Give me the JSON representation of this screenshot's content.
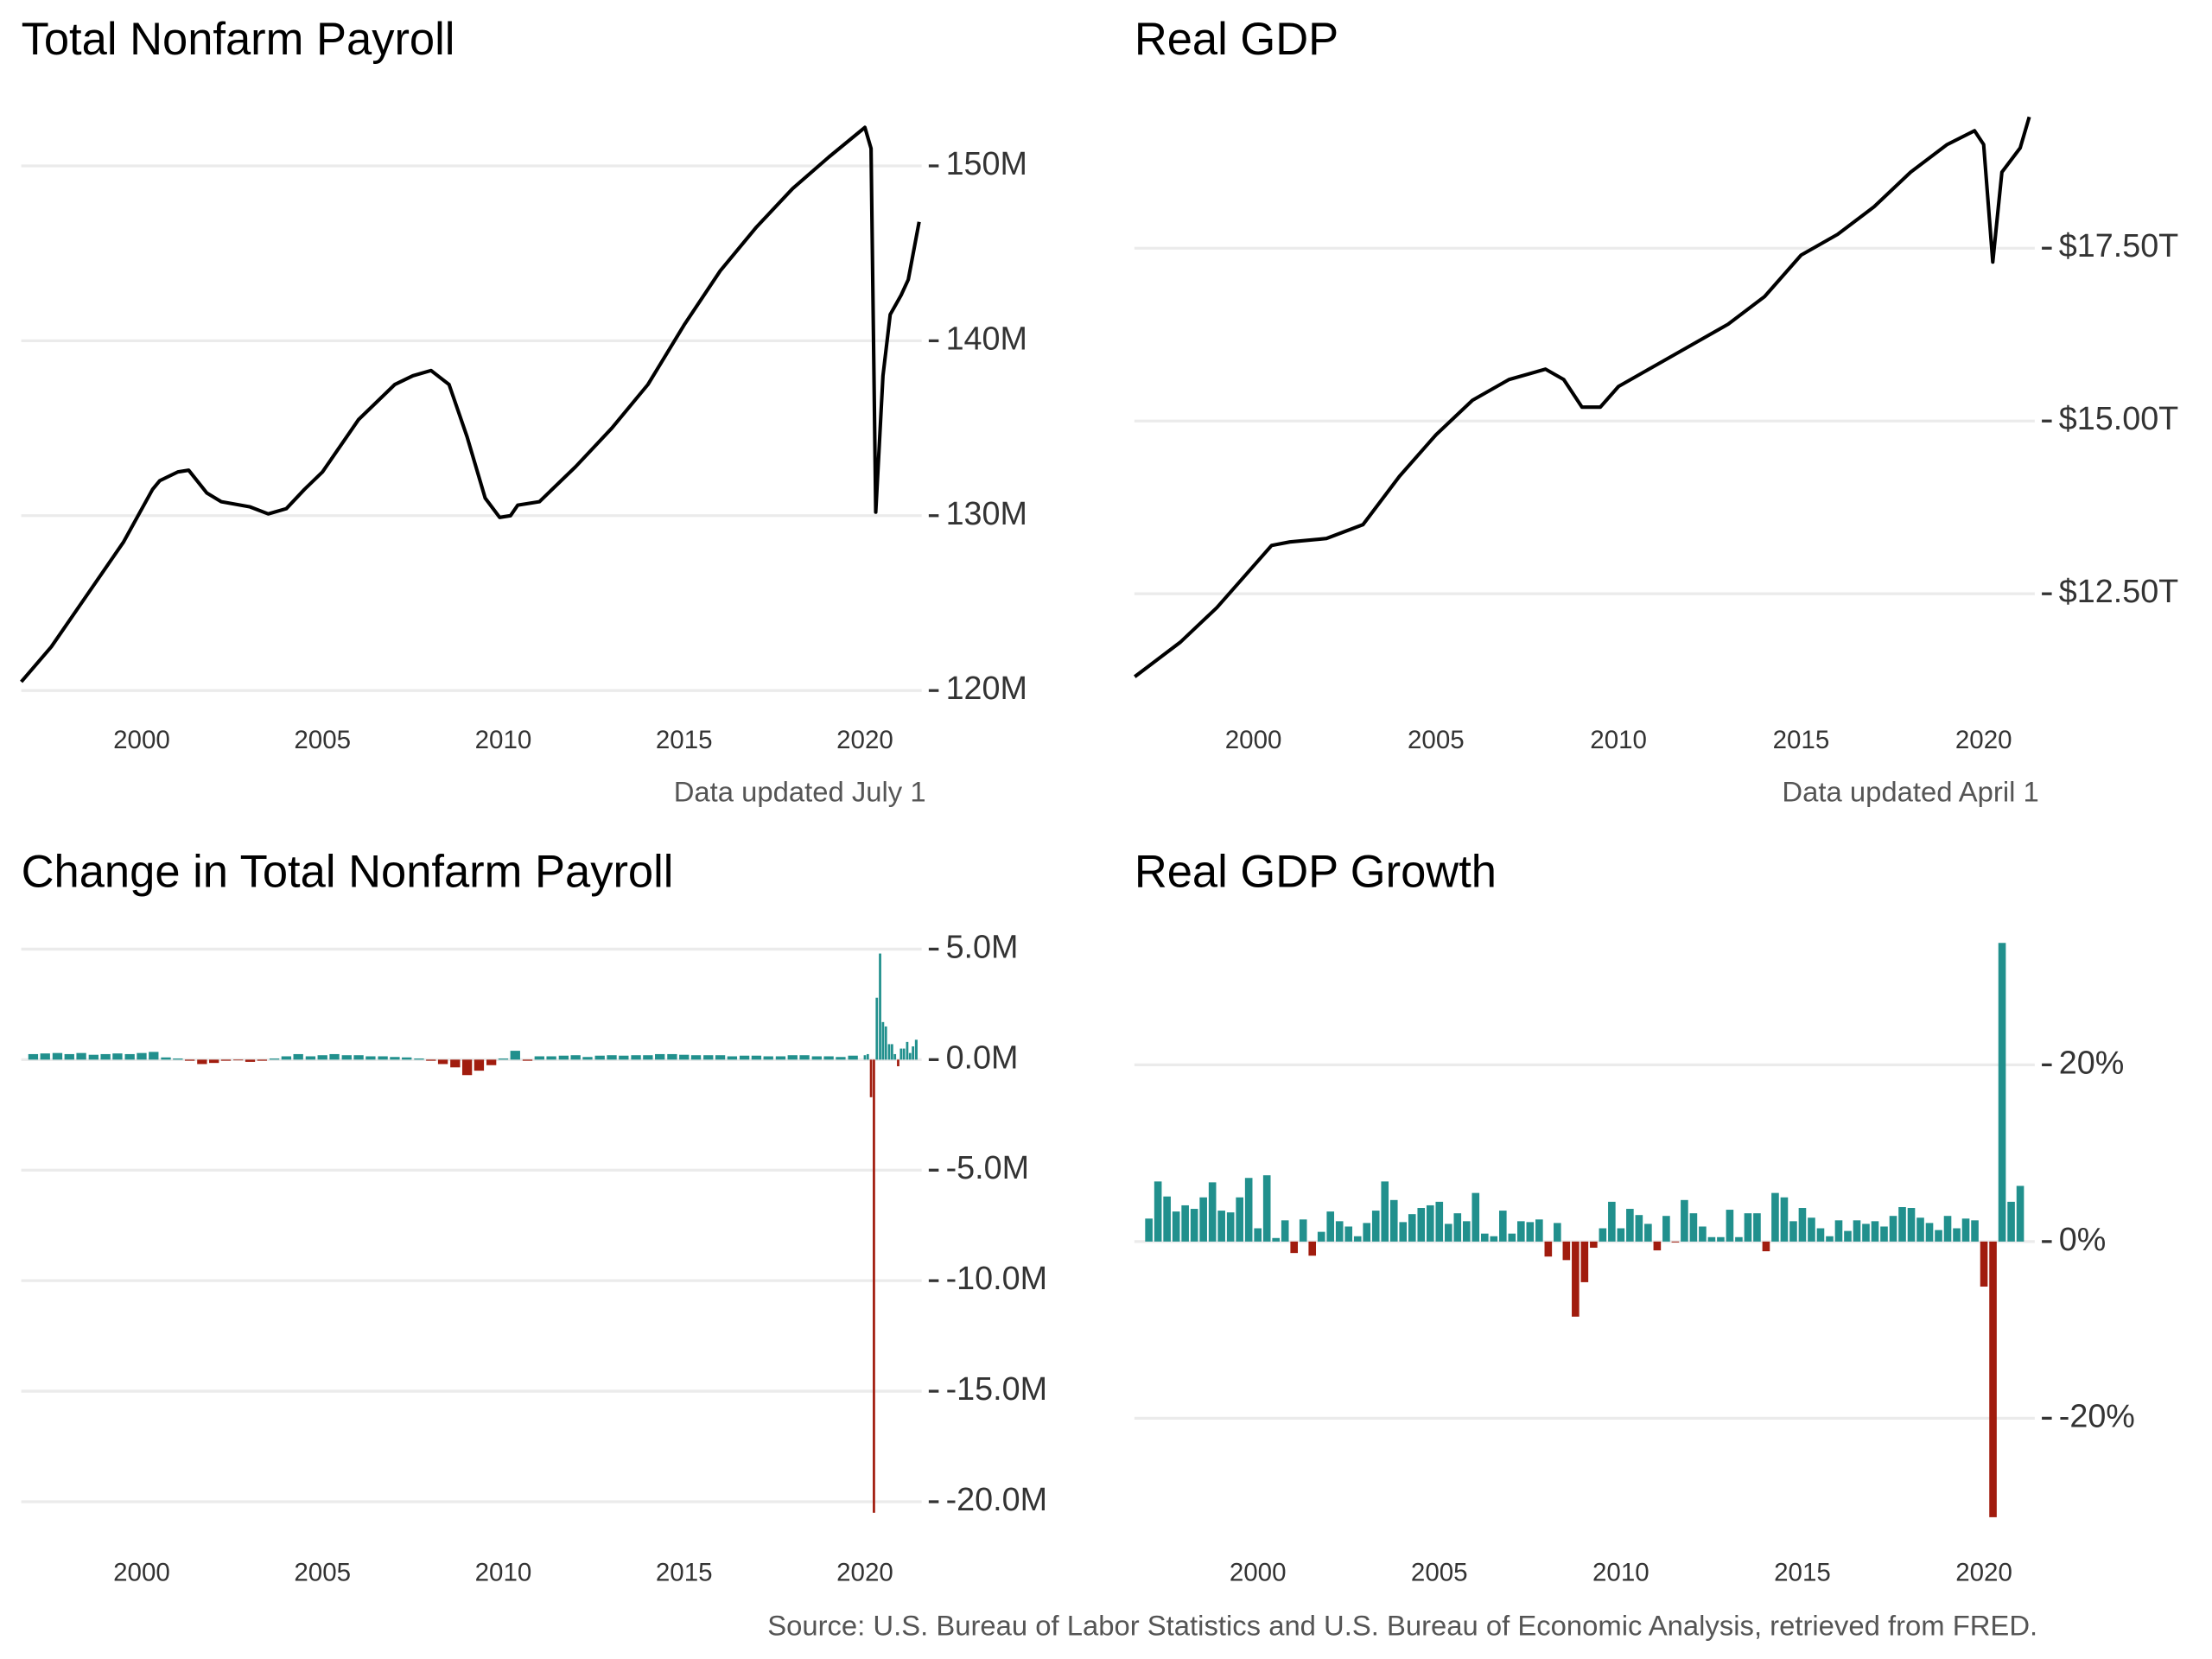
{
  "caption": "Source: U.S. Bureau of Labor Statistics and U.S. Bureau of Economic Analysis, retrieved from FRED.",
  "chart_data": [
    {
      "type": "line",
      "title": "Total Nonfarm Payroll",
      "note": "Data updated July 1",
      "color": "#000000",
      "grid": true,
      "x": [
        1996.67,
        1997.5,
        1998.5,
        1999.5,
        2000.3,
        2000.5,
        2001.0,
        2001.3,
        2001.8,
        2002.2,
        2003.0,
        2003.5,
        2004.0,
        2004.5,
        2005.0,
        2006.0,
        2007.0,
        2007.5,
        2008.0,
        2008.5,
        2009.0,
        2009.5,
        2009.9,
        2010.2,
        2010.4,
        2011.0,
        2012.0,
        2013.0,
        2014.0,
        2015.0,
        2016.0,
        2017.0,
        2018.0,
        2019.0,
        2020.0,
        2020.17,
        2020.3,
        2020.5,
        2020.7,
        2021.0,
        2021.2,
        2021.5
      ],
      "values": [
        120.5,
        122.5,
        125.5,
        128.5,
        131.5,
        132.0,
        132.5,
        132.6,
        131.3,
        130.8,
        130.5,
        130.1,
        130.4,
        131.5,
        132.5,
        135.5,
        137.5,
        138.0,
        138.3,
        137.5,
        134.5,
        131.0,
        129.9,
        130.0,
        130.6,
        130.8,
        132.8,
        135.0,
        137.5,
        140.9,
        144.0,
        146.5,
        148.7,
        150.5,
        152.2,
        151.0,
        130.2,
        138.0,
        141.5,
        142.6,
        143.5,
        146.8
      ],
      "xlim": [
        1996.67,
        2021.57
      ],
      "xticks": [
        2000,
        2005,
        2010,
        2015,
        2020
      ],
      "ylim": [
        120,
        153
      ],
      "yticks": [
        {
          "value": 120,
          "label": "120M"
        },
        {
          "value": 130,
          "label": "130M"
        },
        {
          "value": 140,
          "label": "140M"
        },
        {
          "value": 150,
          "label": "150M"
        }
      ]
    },
    {
      "type": "line",
      "title": "Real GDP",
      "note": "Data updated April 1",
      "color": "#000000",
      "grid": true,
      "x": [
        1996.75,
        1998,
        1999,
        2000,
        2000.5,
        2001,
        2002,
        2003,
        2004,
        2005,
        2006,
        2007,
        2008,
        2008.5,
        2009,
        2009.5,
        2010,
        2011,
        2012,
        2013,
        2014,
        2015,
        2016,
        2017,
        2018,
        2019,
        2019.75,
        2020.0,
        2020.25,
        2020.5,
        2021.0,
        2021.25
      ],
      "values": [
        11.3,
        11.8,
        12.3,
        12.9,
        13.2,
        13.25,
        13.3,
        13.5,
        14.2,
        14.8,
        15.3,
        15.6,
        15.75,
        15.6,
        15.2,
        15.2,
        15.5,
        15.8,
        16.1,
        16.4,
        16.8,
        17.4,
        17.7,
        18.1,
        18.6,
        19.0,
        19.2,
        19.0,
        17.3,
        18.6,
        18.95,
        19.4
      ],
      "xlim": [
        1996.74,
        2021.4
      ],
      "xticks": [
        2000,
        2005,
        2010,
        2015,
        2020
      ],
      "ylim": [
        11.1,
        19.45
      ],
      "yticks": [
        {
          "value": 12.5,
          "label": "$12.50T"
        },
        {
          "value": 15,
          "label": "$15.00T"
        },
        {
          "value": 17.5,
          "label": "$17.50T"
        }
      ]
    },
    {
      "type": "bar",
      "title": "Change in Total Nonfarm Payroll",
      "positive_color": "#21908d",
      "negative_color": "#a11c0e",
      "grid": true,
      "x": [
        1997.0,
        1997.33,
        1997.67,
        1998.0,
        1998.33,
        1998.67,
        1999.0,
        1999.33,
        1999.67,
        2000.0,
        2000.33,
        2000.67,
        2001.0,
        2001.33,
        2001.67,
        2002.0,
        2002.33,
        2002.67,
        2003.0,
        2003.33,
        2003.67,
        2004.0,
        2004.33,
        2004.67,
        2005.0,
        2005.33,
        2005.67,
        2006.0,
        2006.33,
        2006.67,
        2007.0,
        2007.33,
        2007.67,
        2008.0,
        2008.33,
        2008.67,
        2009.0,
        2009.33,
        2009.67,
        2010.0,
        2010.33,
        2010.67,
        2011.0,
        2011.33,
        2011.67,
        2012.0,
        2012.33,
        2012.67,
        2013.0,
        2013.33,
        2013.67,
        2014.0,
        2014.33,
        2014.67,
        2015.0,
        2015.33,
        2015.67,
        2016.0,
        2016.33,
        2016.67,
        2017.0,
        2017.33,
        2017.67,
        2018.0,
        2018.33,
        2018.67,
        2019.0,
        2019.33,
        2019.67,
        2020.0,
        2020.08,
        2020.17,
        2020.25,
        2020.33,
        2020.42,
        2020.5,
        2020.58,
        2020.67,
        2020.75,
        2020.83,
        2020.92,
        2021.0,
        2021.08,
        2021.17,
        2021.25,
        2021.33,
        2021.42
      ],
      "values": [
        0.25,
        0.28,
        0.3,
        0.25,
        0.3,
        0.22,
        0.25,
        0.28,
        0.25,
        0.3,
        0.35,
        0.1,
        0.05,
        -0.05,
        -0.2,
        -0.15,
        -0.05,
        -0.02,
        -0.1,
        -0.05,
        0.05,
        0.15,
        0.25,
        0.15,
        0.2,
        0.25,
        0.2,
        0.2,
        0.15,
        0.15,
        0.12,
        0.1,
        0.05,
        -0.05,
        -0.2,
        -0.35,
        -0.7,
        -0.5,
        -0.25,
        0.05,
        0.4,
        -0.05,
        0.15,
        0.15,
        0.18,
        0.2,
        0.12,
        0.18,
        0.2,
        0.18,
        0.2,
        0.2,
        0.25,
        0.25,
        0.22,
        0.2,
        0.2,
        0.2,
        0.15,
        0.18,
        0.18,
        0.15,
        0.15,
        0.2,
        0.2,
        0.15,
        0.15,
        0.12,
        0.18,
        0.2,
        0.25,
        -1.7,
        -20.5,
        2.8,
        4.8,
        1.7,
        1.5,
        0.7,
        0.7,
        0.25,
        -0.3,
        0.5,
        0.5,
        0.8,
        0.3,
        0.6,
        0.9
      ],
      "xlim": [
        1996.67,
        2021.57
      ],
      "xticks": [
        2000,
        2005,
        2010,
        2015,
        2020
      ],
      "ylim": [
        -20.7,
        5.6
      ],
      "yticks": [
        {
          "value": -20,
          "label": "-20.0M"
        },
        {
          "value": -15,
          "label": "-15.0M"
        },
        {
          "value": -10,
          "label": "-10.0M"
        },
        {
          "value": -5,
          "label": "-5.0M"
        },
        {
          "value": 0,
          "label": "0.0M"
        },
        {
          "value": 5,
          "label": "5.0M"
        }
      ]
    },
    {
      "type": "bar",
      "title": "Real GDP Growth",
      "positive_color": "#21908d",
      "negative_color": "#a11c0e",
      "grid": true,
      "x": [
        1997,
        1997.25,
        1997.5,
        1997.75,
        1998,
        1998.25,
        1998.5,
        1998.75,
        1999,
        1999.25,
        1999.5,
        1999.75,
        2000,
        2000.25,
        2000.5,
        2000.75,
        2001,
        2001.25,
        2001.5,
        2001.75,
        2002,
        2002.25,
        2002.5,
        2002.75,
        2003,
        2003.25,
        2003.5,
        2003.75,
        2004,
        2004.25,
        2004.5,
        2004.75,
        2005,
        2005.25,
        2005.5,
        2005.75,
        2006,
        2006.25,
        2006.5,
        2006.75,
        2007,
        2007.25,
        2007.5,
        2007.75,
        2008,
        2008.25,
        2008.5,
        2008.75,
        2009,
        2009.25,
        2009.5,
        2009.75,
        2010,
        2010.25,
        2010.5,
        2010.75,
        2011,
        2011.25,
        2011.5,
        2011.75,
        2012,
        2012.25,
        2012.5,
        2012.75,
        2013,
        2013.25,
        2013.5,
        2013.75,
        2014,
        2014.25,
        2014.5,
        2014.75,
        2015,
        2015.25,
        2015.5,
        2015.75,
        2016,
        2016.25,
        2016.5,
        2016.75,
        2017,
        2017.25,
        2017.5,
        2017.75,
        2018,
        2018.25,
        2018.5,
        2018.75,
        2019,
        2019.25,
        2019.5,
        2019.75,
        2020,
        2020.25,
        2020.5,
        2020.75,
        2021
      ],
      "values": [
        2.6,
        6.8,
        5.1,
        3.4,
        4.1,
        3.7,
        5.0,
        6.7,
        3.5,
        3.3,
        5.0,
        7.2,
        1.5,
        7.5,
        0.4,
        2.4,
        -1.3,
        2.5,
        -1.6,
        1.1,
        3.4,
        2.3,
        1.7,
        0.6,
        2.1,
        3.5,
        6.8,
        4.7,
        2.2,
        3.1,
        3.8,
        4.1,
        4.5,
        2.0,
        3.2,
        2.3,
        5.5,
        0.9,
        0.6,
        3.5,
        0.9,
        2.3,
        2.2,
        2.5,
        -1.7,
        2.1,
        -2.1,
        -8.5,
        -4.6,
        -0.7,
        1.5,
        4.5,
        1.5,
        3.7,
        3.0,
        2.0,
        -1.0,
        2.9,
        -0.1,
        4.7,
        3.2,
        1.7,
        0.5,
        0.5,
        3.6,
        0.5,
        3.2,
        3.2,
        -1.1,
        5.5,
        5.0,
        2.3,
        3.8,
        2.7,
        1.5,
        0.6,
        2.4,
        1.2,
        2.4,
        2.0,
        2.3,
        1.7,
        2.9,
        3.9,
        3.8,
        2.7,
        2.1,
        1.3,
        2.9,
        1.5,
        2.6,
        2.4,
        -5.1,
        -31.2,
        33.8,
        4.5,
        6.3
      ],
      "xlim": [
        1996.6,
        2021.4
      ],
      "xticks": [
        2000,
        2005,
        2010,
        2015,
        2020
      ],
      "ylim": [
        -31.2,
        34.6
      ],
      "yticks": [
        {
          "value": -20,
          "label": "-20%"
        },
        {
          "value": 0,
          "label": "0%"
        },
        {
          "value": 20,
          "label": "20%"
        }
      ]
    }
  ]
}
